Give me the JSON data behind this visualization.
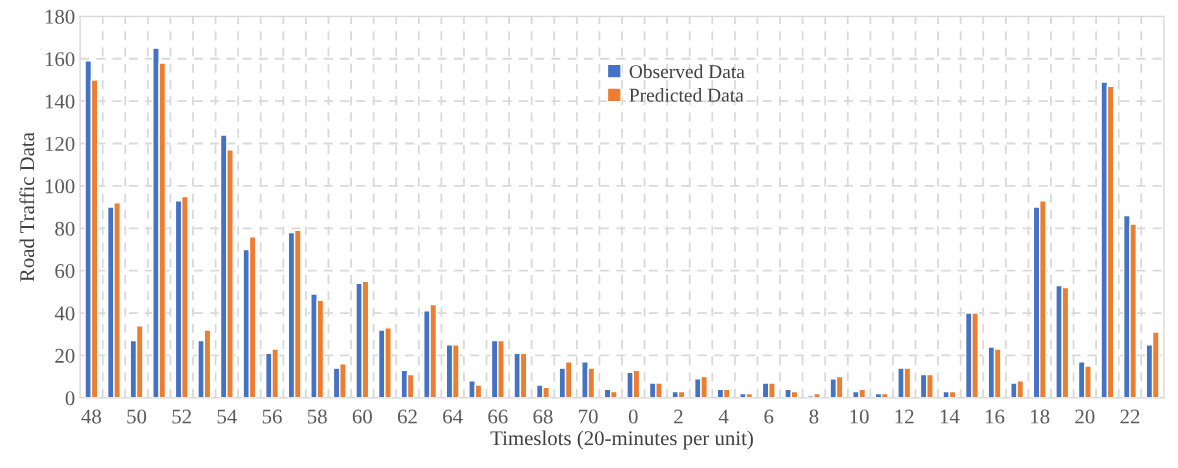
{
  "chart_data": {
    "type": "bar",
    "xlabel": "Timeslots (20-minutes per unit)",
    "ylabel": "Road Traffic Data",
    "categories": [
      "48",
      null,
      "50",
      null,
      "52",
      null,
      "54",
      null,
      "56",
      null,
      "58",
      null,
      "60",
      null,
      "62",
      null,
      "64",
      null,
      "66",
      null,
      "68",
      null,
      "70",
      null,
      "0",
      null,
      "2",
      null,
      "4",
      null,
      "6",
      null,
      "8",
      null,
      "10",
      null,
      "12",
      null,
      "14",
      null,
      "16",
      null,
      "18",
      null,
      "20",
      null,
      "22",
      null
    ],
    "series": [
      {
        "name": "Observed Data",
        "color": "#4472c4",
        "values": [
          159,
          90,
          27,
          165,
          93,
          27,
          124,
          70,
          21,
          78,
          49,
          14,
          54,
          32,
          13,
          41,
          25,
          8,
          27,
          21,
          6,
          14,
          17,
          4,
          12,
          7,
          3,
          9,
          4,
          2,
          7,
          4,
          1,
          9,
          3,
          2,
          14,
          11,
          3,
          40,
          24,
          7,
          90,
          53,
          17,
          149,
          86,
          25
        ]
      },
      {
        "name": "Predicted Data",
        "color": "#ed7d31",
        "values": [
          150,
          92,
          34,
          158,
          95,
          32,
          117,
          76,
          23,
          79,
          46,
          16,
          55,
          33,
          11,
          44,
          25,
          6,
          27,
          21,
          5,
          17,
          14,
          3,
          13,
          7,
          3,
          10,
          4,
          2,
          7,
          3,
          2,
          10,
          4,
          2,
          14,
          11,
          3,
          40,
          23,
          8,
          93,
          52,
          15,
          147,
          82,
          31
        ]
      }
    ],
    "ylim": [
      0,
      180
    ],
    "yticks": [
      0,
      20,
      40,
      60,
      80,
      100,
      120,
      140,
      160,
      180
    ],
    "grid": true,
    "legend": "top"
  }
}
